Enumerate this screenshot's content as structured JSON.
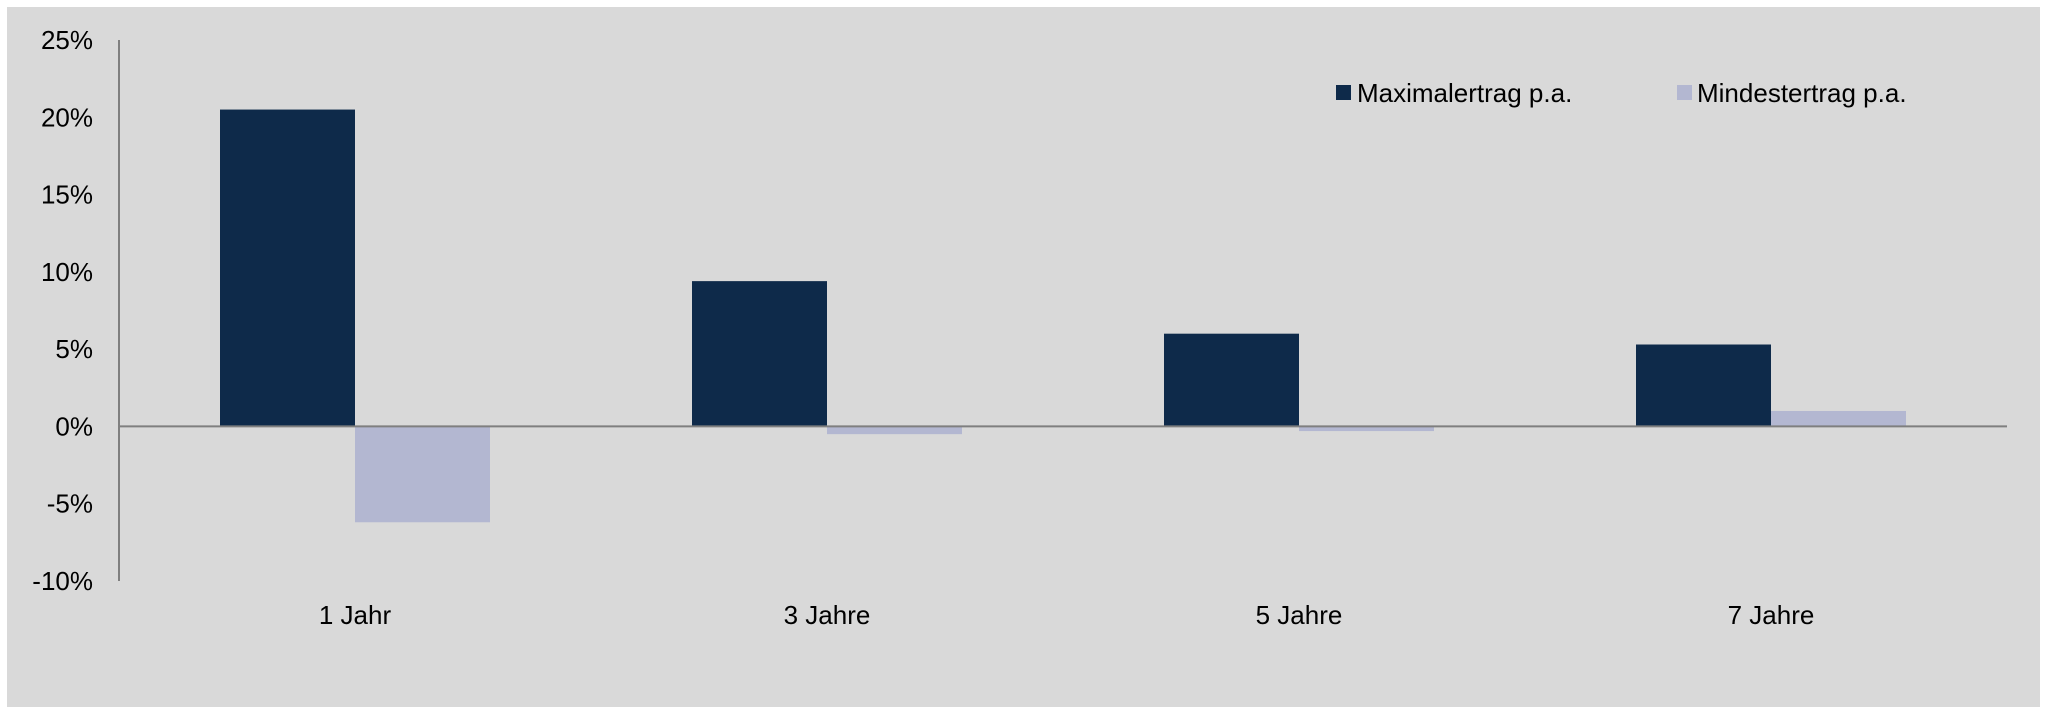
{
  "chart_data": {
    "type": "bar",
    "categories": [
      "1 Jahr",
      "3 Jahre",
      "5 Jahre",
      "7 Jahre"
    ],
    "series": [
      {
        "name": "Maximalertrag p.a.",
        "values": [
          20.5,
          9.4,
          6.0,
          5.3
        ],
        "color": "#0e2a4a"
      },
      {
        "name": "Mindestertrag p.a.",
        "values": [
          -6.2,
          -0.5,
          -0.3,
          1.0
        ],
        "color": "#b3b7d1"
      }
    ],
    "ylim": [
      -10,
      25
    ],
    "yticks": [
      25,
      20,
      15,
      10,
      5,
      0,
      -5,
      -10
    ],
    "ytick_labels": [
      "25%",
      "20%",
      "15%",
      "10%",
      "5%",
      "0%",
      "-5%",
      "-10%"
    ],
    "legend": "top-right",
    "grid": false
  }
}
